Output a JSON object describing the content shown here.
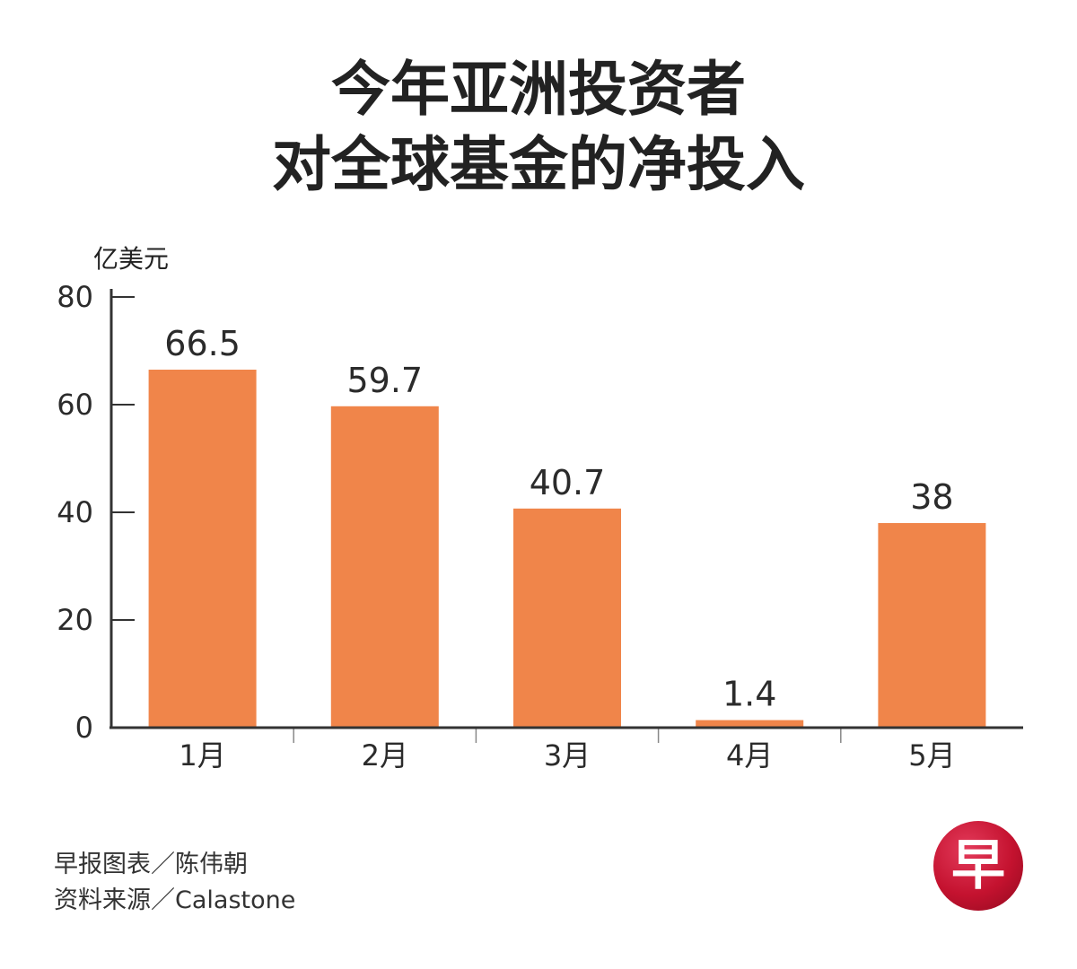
{
  "title": {
    "line1": "今年亚洲投资者",
    "line2": "对全球基金的净投入"
  },
  "chart_data": {
    "type": "bar",
    "title": "今年亚洲投资者对全球基金的净投入",
    "ylabel": "亿美元",
    "xlabel": "",
    "categories": [
      "1月",
      "2月",
      "3月",
      "4月",
      "5月"
    ],
    "values": [
      66.5,
      59.7,
      40.7,
      1.4,
      38
    ],
    "value_labels": [
      "66.5",
      "59.7",
      "40.7",
      "1.4",
      "38"
    ],
    "ylim": [
      0,
      80
    ],
    "yticks": [
      0,
      20,
      40,
      60,
      80
    ],
    "grid": false,
    "legend": "none",
    "bar_color": "#f0854a",
    "axis_color": "#333333"
  },
  "footer": {
    "credit": "早报图表／陈伟朝",
    "source": "资料来源／Calastone"
  },
  "logo": {
    "glyph": "早",
    "color": "#c4122f"
  }
}
